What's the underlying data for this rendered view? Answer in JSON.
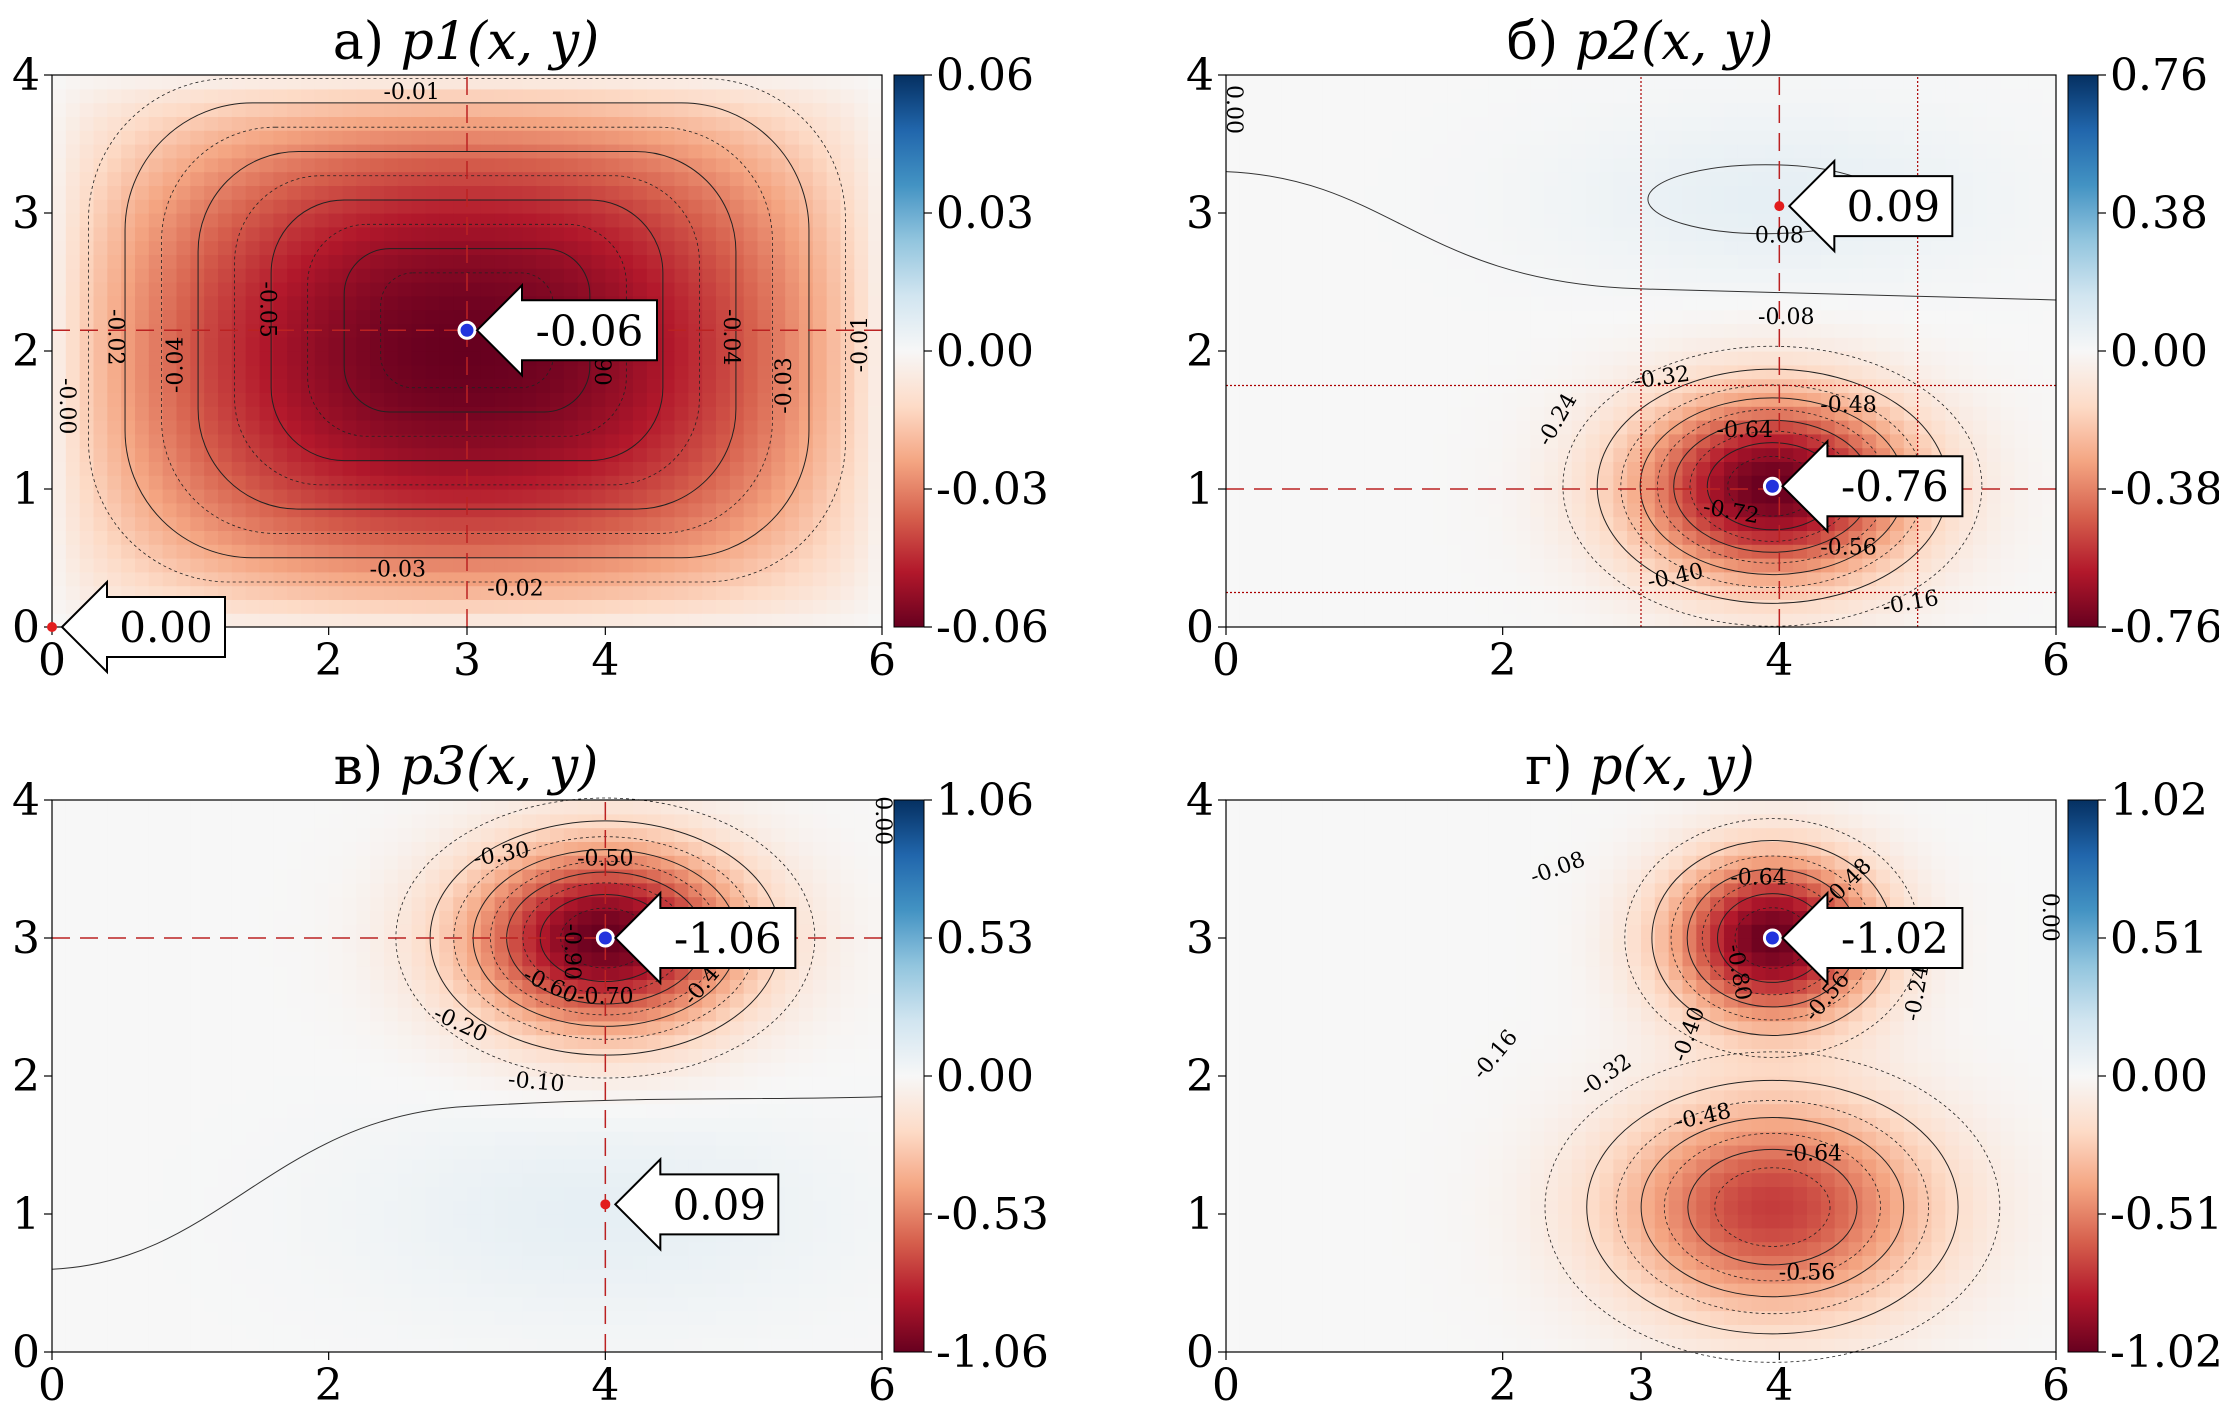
{
  "chart_data": [
    {
      "type": "heatmap",
      "title": "а) p1(x, y)",
      "title_prefix": "а)",
      "title_math": "p1(x, y)",
      "xlim": [
        0,
        6
      ],
      "ylim": [
        0,
        4
      ],
      "xticks": [
        "0",
        "2",
        "3",
        "4",
        "6"
      ],
      "xtick_values": [
        0,
        2,
        3,
        4,
        6
      ],
      "yticks": [
        "0",
        "1",
        "2",
        "3",
        "4"
      ],
      "colorbar_ticks": [
        "0.06",
        "0.03",
        "0.00",
        "-0.03",
        "-0.06"
      ],
      "colorbar_range": [
        -0.06,
        0.06
      ],
      "colormap": "RdBu",
      "field": {
        "kind": "box",
        "cx": 3,
        "cy": 2.15,
        "amplitude": -0.06
      },
      "contour_labels": [
        "-0.01",
        "-0.02",
        "-0.03",
        "-0.04",
        "-0.05",
        "-0.06",
        "-0.00"
      ],
      "contour_label_items": [
        {
          "text": "-0.01",
          "x": 2.6,
          "y": 3.87,
          "rot": 0
        },
        {
          "text": "-0.02",
          "x": 0.45,
          "y": 2.1,
          "rot": 90
        },
        {
          "text": "-0.04",
          "x": 0.9,
          "y": 1.9,
          "rot": -90
        },
        {
          "text": "-0.05",
          "x": 1.55,
          "y": 2.3,
          "rot": 90
        },
        {
          "text": "-0.00",
          "x": 0.1,
          "y": 1.6,
          "rot": 90
        },
        {
          "text": "-0.04",
          "x": 4.9,
          "y": 2.1,
          "rot": 90
        },
        {
          "text": "-0.03",
          "x": 5.3,
          "y": 1.75,
          "rot": -90
        },
        {
          "text": "-0.01",
          "x": 5.85,
          "y": 2.05,
          "rot": -90
        },
        {
          "text": "-0.03",
          "x": 2.5,
          "y": 0.41,
          "rot": 0
        },
        {
          "text": "-0.02",
          "x": 3.35,
          "y": 0.27,
          "rot": 0
        },
        {
          "text": "06",
          "x": 4.0,
          "y": 1.85,
          "rot": -90
        }
      ],
      "crosshair": {
        "x": 3,
        "y": 2.15
      },
      "annotations": [
        {
          "text": "-0.06",
          "x": 3.0,
          "y": 2.15,
          "marker": "min"
        },
        {
          "text": "0.00",
          "x": 0.0,
          "y": 0.0,
          "marker": "max"
        }
      ]
    },
    {
      "type": "heatmap",
      "title": "б) p2(x, y)",
      "title_prefix": "б)",
      "title_math": "p2(x, y)",
      "xlim": [
        0,
        6
      ],
      "ylim": [
        0,
        4
      ],
      "xticks": [
        "0",
        "2",
        "4",
        "6"
      ],
      "xtick_values": [
        0,
        2,
        4,
        6
      ],
      "yticks": [
        "0",
        "1",
        "2",
        "3",
        "4"
      ],
      "colorbar_ticks": [
        "0.76",
        "0.38",
        "0.00",
        "-0.38",
        "-0.76"
      ],
      "colorbar_range": [
        -0.76,
        0.76
      ],
      "colormap": "RdBu",
      "field": {
        "kind": "gauss",
        "cx": 3.95,
        "cy": 1.02,
        "amplitude": -0.76
      },
      "contour_labels": [
        "-0.08",
        "-0.16",
        "-0.24",
        "-0.32",
        "-0.40",
        "-0.48",
        "-0.56",
        "-0.64",
        "-0.72",
        "0.08",
        "0.00"
      ],
      "contour_label_items": [
        {
          "text": "0.08",
          "x": 4.0,
          "y": 2.83,
          "rot": 0
        },
        {
          "text": "-0.08",
          "x": 4.05,
          "y": 2.24,
          "rot": 0
        },
        {
          "text": "-0.32",
          "x": 3.15,
          "y": 1.8,
          "rot": -8
        },
        {
          "text": "-0.48",
          "x": 4.5,
          "y": 1.6,
          "rot": 0
        },
        {
          "text": "-0.24",
          "x": 2.4,
          "y": 1.5,
          "rot": -60
        },
        {
          "text": "-0.64",
          "x": 3.75,
          "y": 1.42,
          "rot": 0
        },
        {
          "text": "-0.72",
          "x": 3.65,
          "y": 0.83,
          "rot": 10
        },
        {
          "text": "-0.56",
          "x": 4.5,
          "y": 0.57,
          "rot": 0
        },
        {
          "text": "-0.40",
          "x": 3.25,
          "y": 0.36,
          "rot": -12
        },
        {
          "text": "-0.16",
          "x": 4.95,
          "y": 0.17,
          "rot": -10
        },
        {
          "text": "0.00",
          "x": 0.05,
          "y": 3.75,
          "rot": 90
        }
      ],
      "crosshair": {
        "x": 4.0,
        "y": 1.0
      },
      "guide_lines_x": [
        3,
        5
      ],
      "guide_lines_y": [
        1.75,
        0.25
      ],
      "annotations": [
        {
          "text": "-0.76",
          "x": 3.95,
          "y": 1.02,
          "marker": "min"
        },
        {
          "text": "0.09",
          "x": 4.0,
          "y": 3.05,
          "marker": "max"
        }
      ]
    },
    {
      "type": "heatmap",
      "title": "в) p3(x, y)",
      "title_prefix": "в)",
      "title_math": "p3(x, y)",
      "xlim": [
        0,
        6
      ],
      "ylim": [
        0,
        4
      ],
      "xticks": [
        "0",
        "2",
        "4",
        "6"
      ],
      "xtick_values": [
        0,
        2,
        4,
        6
      ],
      "yticks": [
        "0",
        "1",
        "2",
        "3",
        "4"
      ],
      "colorbar_ticks": [
        "1.06",
        "0.53",
        "0.00",
        "-0.53",
        "-1.06"
      ],
      "colorbar_range": [
        -1.06,
        1.06
      ],
      "colormap": "RdBu",
      "field": {
        "kind": "gauss",
        "cx": 4.0,
        "cy": 3.0,
        "amplitude": -1.06
      },
      "contour_labels": [
        "-0.10",
        "-0.20",
        "-0.30",
        "-0.40",
        "-0.50",
        "-0.60",
        "-0.70",
        "-0.90",
        "0.00"
      ],
      "contour_label_items": [
        {
          "text": "-0.30",
          "x": 3.25,
          "y": 3.6,
          "rot": -10
        },
        {
          "text": "-0.50",
          "x": 4.0,
          "y": 3.57,
          "rot": 0
        },
        {
          "text": "-0.90",
          "x": 3.75,
          "y": 2.9,
          "rot": 90
        },
        {
          "text": "-0.60",
          "x": 3.6,
          "y": 2.65,
          "rot": 25
        },
        {
          "text": "-0.70",
          "x": 4.0,
          "y": 2.57,
          "rot": 0
        },
        {
          "text": "-0.4",
          "x": 4.7,
          "y": 2.65,
          "rot": -50
        },
        {
          "text": "-0.20",
          "x": 2.95,
          "y": 2.37,
          "rot": 25
        },
        {
          "text": "-0.10",
          "x": 3.5,
          "y": 1.95,
          "rot": 5
        },
        {
          "text": "0.00",
          "x": 6.0,
          "y": 3.85,
          "rot": 90
        }
      ],
      "crosshair": {
        "x": 4.0,
        "y": 3.0
      },
      "annotations": [
        {
          "text": "-1.06",
          "x": 4.0,
          "y": 3.0,
          "marker": "min"
        },
        {
          "text": "0.09",
          "x": 4.0,
          "y": 1.07,
          "marker": "max"
        }
      ]
    },
    {
      "type": "heatmap",
      "title": "г) p(x, y)",
      "title_prefix": "г)",
      "title_math": "p(x, y)",
      "xlim": [
        0,
        6
      ],
      "ylim": [
        0,
        4
      ],
      "xticks": [
        "0",
        "2",
        "3",
        "4",
        "6"
      ],
      "xtick_values": [
        0,
        2,
        3,
        4,
        6
      ],
      "yticks": [
        "0",
        "1",
        "2",
        "3",
        "4"
      ],
      "colorbar_ticks": [
        "1.02",
        "0.51",
        "0.00",
        "-0.51",
        "-1.02"
      ],
      "colorbar_range": [
        -1.02,
        1.02
      ],
      "colormap": "RdBu",
      "field": {
        "kind": "sum",
        "amplitude": -1.02
      },
      "contour_labels": [
        "-0.08",
        "-0.16",
        "-0.24",
        "-0.32",
        "-0.40",
        "-0.48",
        "-0.56",
        "-0.64",
        "-0.80",
        "0.00"
      ],
      "contour_label_items": [
        {
          "text": "-0.08",
          "x": 2.4,
          "y": 3.5,
          "rot": -20
        },
        {
          "text": "-0.64",
          "x": 3.85,
          "y": 3.43,
          "rot": 0
        },
        {
          "text": "-0.48",
          "x": 4.5,
          "y": 3.4,
          "rot": -45
        },
        {
          "text": "-0.80",
          "x": 3.7,
          "y": 2.75,
          "rot": 80
        },
        {
          "text": "-0.56",
          "x": 4.35,
          "y": 2.57,
          "rot": -50
        },
        {
          "text": "-0.24",
          "x": 5.0,
          "y": 2.6,
          "rot": -80
        },
        {
          "text": "-0.40",
          "x": 3.35,
          "y": 2.3,
          "rot": -70
        },
        {
          "text": "-0.16",
          "x": 1.95,
          "y": 2.15,
          "rot": -50
        },
        {
          "text": "-0.32",
          "x": 2.75,
          "y": 2.0,
          "rot": -35
        },
        {
          "text": "-0.48",
          "x": 3.45,
          "y": 1.7,
          "rot": -12
        },
        {
          "text": "-0.64",
          "x": 4.25,
          "y": 1.43,
          "rot": 0
        },
        {
          "text": "-0.56",
          "x": 4.2,
          "y": 0.57,
          "rot": 0
        },
        {
          "text": "0.00",
          "x": 5.95,
          "y": 3.15,
          "rot": 90
        }
      ],
      "crosshair": null,
      "annotations": [
        {
          "text": "-1.02",
          "x": 3.95,
          "y": 3.0,
          "marker": "min"
        }
      ]
    }
  ]
}
